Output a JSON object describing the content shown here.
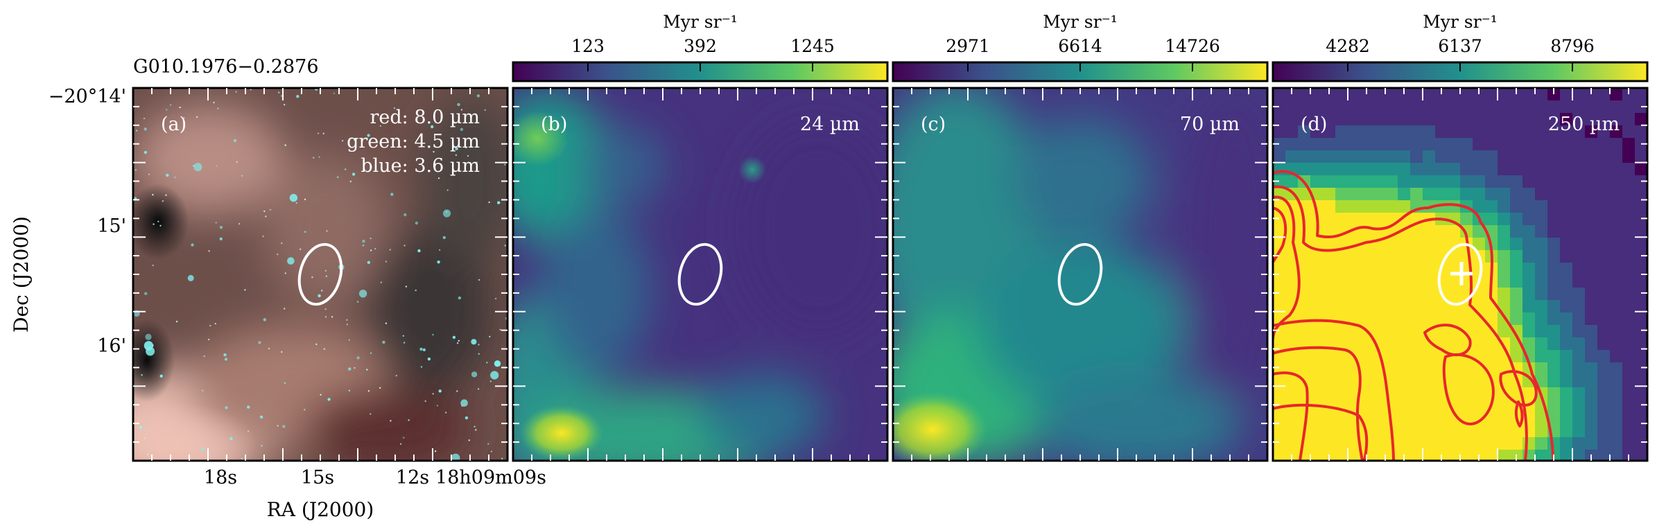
{
  "source_name": "G010.1976−0.2876",
  "xlabel": "RA (J2000)",
  "ylabel": "Dec (J2000)",
  "ra_ticks": [
    "18s",
    "15s",
    "12s",
    "18h09m09s"
  ],
  "dec_ticks": [
    "−20°14'",
    "15'",
    "16'"
  ],
  "colorbar_unit": "Myr sr⁻¹",
  "panels": [
    {
      "tag": "(a)",
      "composite_legend": [
        "red: 8.0 µm",
        "green: 4.5 µm",
        "blue: 3.6 µm"
      ],
      "rgb": {
        "red": "#d48a78",
        "green": "#6fd6c8",
        "blue": "#49e3e6"
      }
    },
    {
      "tag": "(b)",
      "band": "24 µm",
      "colorbar_ticks": [
        "123",
        "392",
        "1245"
      ],
      "colormap": [
        "#440154",
        "#3b528b",
        "#21918c",
        "#5ec962",
        "#fde725"
      ]
    },
    {
      "tag": "(c)",
      "band": "70 µm",
      "colorbar_ticks": [
        "2971",
        "6614",
        "14726"
      ],
      "colormap": [
        "#440154",
        "#3b528b",
        "#21918c",
        "#5ec962",
        "#fde725"
      ]
    },
    {
      "tag": "(d)",
      "band": "250 µm",
      "colorbar_ticks": [
        "4282",
        "6137",
        "8796"
      ],
      "colormap": [
        "#440154",
        "#3b528b",
        "#21918c",
        "#5ec962",
        "#fde725"
      ],
      "contour_color": "#e8272b"
    }
  ]
}
